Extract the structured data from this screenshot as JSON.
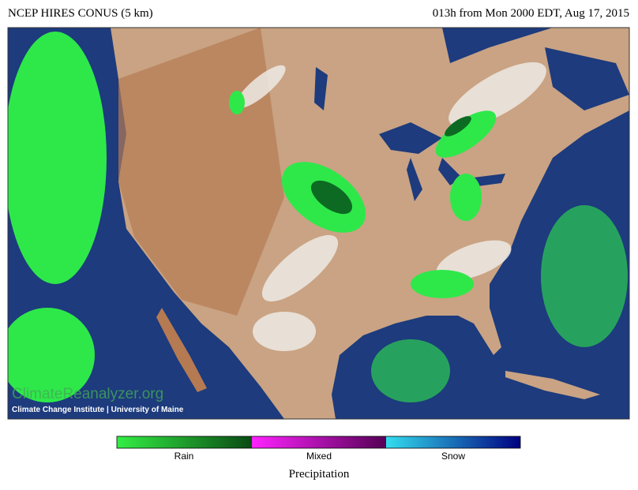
{
  "header": {
    "title": "NCEP HIRES CONUS (5 km)",
    "valid_time": "013h from Mon 2000 EDT, Aug 17, 2015"
  },
  "watermark": {
    "site": "ClimateReanalyzer.org",
    "credit": "Climate Change Institute | University of Maine"
  },
  "legend": {
    "labels": [
      "Rain",
      "Mixed",
      "Snow"
    ],
    "title": "Precipitation"
  }
}
